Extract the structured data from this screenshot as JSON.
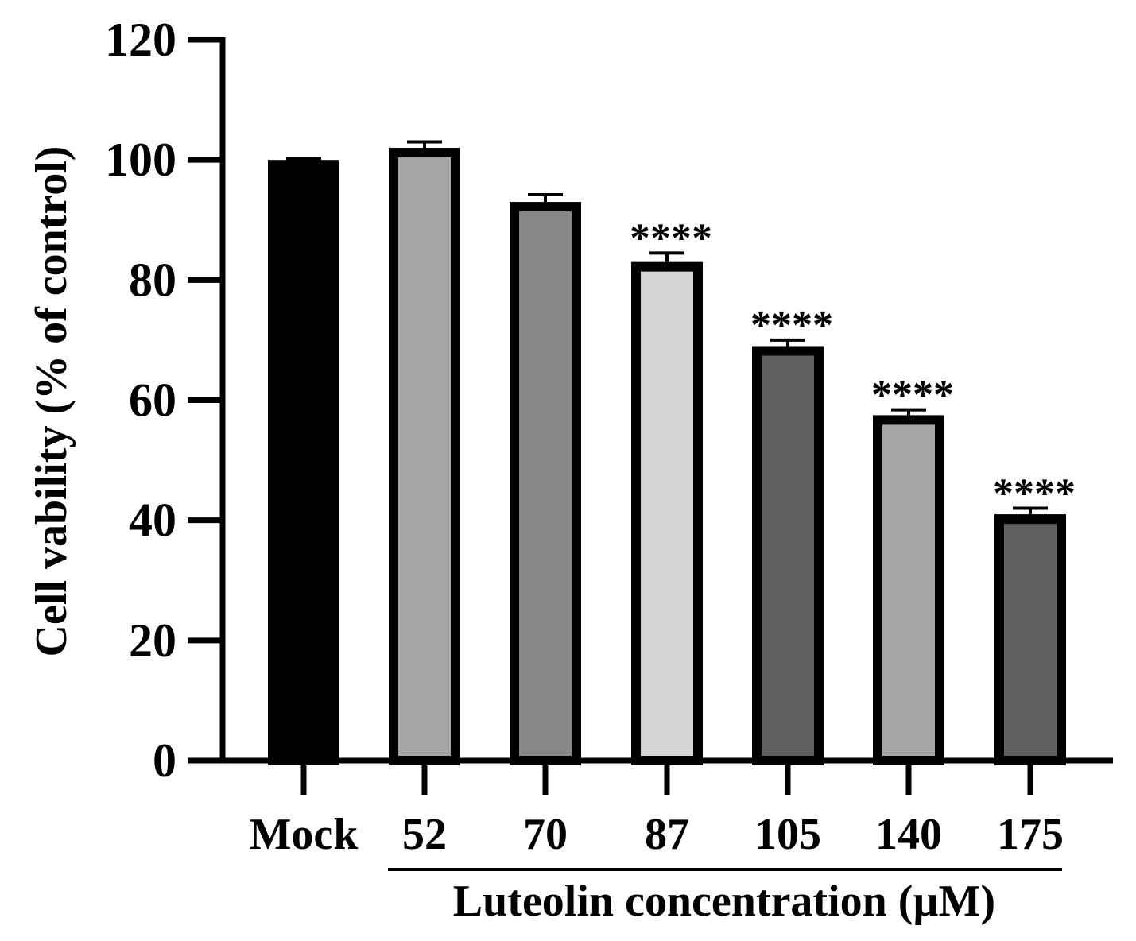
{
  "chart_data": {
    "type": "bar",
    "ylabel": "Cell vability (% of control)",
    "xlabel": "Luteolin concentration (µM)",
    "ylim": [
      0,
      120
    ],
    "yticks": [
      0,
      20,
      40,
      60,
      80,
      100,
      120
    ],
    "grid": false,
    "categories": [
      "Mock",
      "52",
      "70",
      "87",
      "105",
      "140",
      "175"
    ],
    "values": [
      100,
      102,
      93,
      83,
      69,
      57.5,
      41
    ],
    "errors": [
      0.2,
      1.0,
      1.2,
      1.5,
      1.0,
      0.9,
      1.0
    ],
    "significance": [
      "",
      "",
      "",
      "****",
      "****",
      "****",
      "****"
    ],
    "fill_colors": [
      "#000000",
      "#a6a6a8",
      "#888888",
      "#d6d6d6",
      "#5f5f5f",
      "#a6a6a8",
      "#5f5f5f"
    ]
  }
}
